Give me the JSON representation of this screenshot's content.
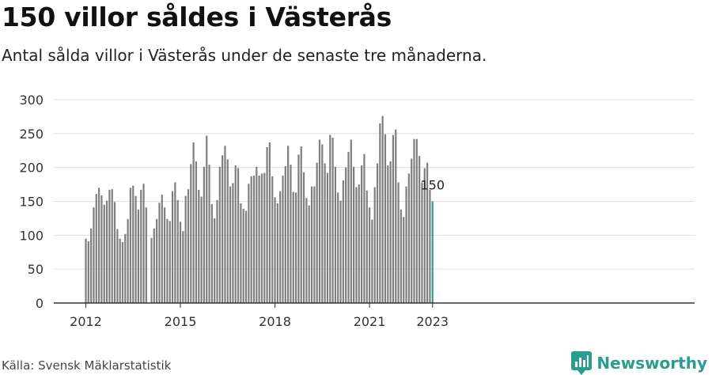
{
  "header": {
    "title": "150 villor såldes i Västerås",
    "subtitle": "Antal sålda villor i Västerås under de senaste tre månaderna."
  },
  "footer": {
    "source": "Källa: Svensk Mäklarstatistik",
    "brand": "Newsworthy",
    "brand_icon": "chart-logo-icon"
  },
  "colors": {
    "bar": "#7f7f7f",
    "highlight": "#2a9d8f",
    "grid": "#dddddd",
    "axis": "#333333",
    "brand": "#2a9d8f"
  },
  "chart_data": {
    "type": "bar",
    "title": "150 villor såldes i Västerås",
    "subtitle": "Antal sålda villor i Västerås under de senaste tre månaderna.",
    "xlabel": "",
    "ylabel": "",
    "ylim": [
      0,
      300
    ],
    "yticks": [
      0,
      50,
      100,
      150,
      200,
      250,
      300
    ],
    "xticks": [
      "2012",
      "2015",
      "2018",
      "2021",
      "2023"
    ],
    "grid": true,
    "start": "2012-01",
    "end": "2023-01",
    "highlight_label": "150",
    "values": [
      95,
      91,
      110,
      141,
      161,
      170,
      159,
      145,
      151,
      167,
      168,
      149,
      109,
      95,
      90,
      102,
      124,
      170,
      173,
      158,
      138,
      167,
      176,
      141,
      null,
      96,
      110,
      124,
      148,
      160,
      141,
      124,
      121,
      165,
      178,
      152,
      120,
      106,
      158,
      168,
      205,
      237,
      209,
      167,
      157,
      201,
      247,
      204,
      146,
      125,
      152,
      201,
      218,
      232,
      212,
      172,
      177,
      203,
      199,
      147,
      139,
      136,
      176,
      187,
      188,
      201,
      188,
      191,
      192,
      230,
      237,
      187,
      156,
      147,
      165,
      188,
      202,
      232,
      204,
      164,
      163,
      219,
      231,
      193,
      155,
      144,
      172,
      172,
      207,
      241,
      234,
      206,
      192,
      248,
      244,
      201,
      163,
      151,
      181,
      200,
      223,
      241,
      201,
      171,
      175,
      203,
      220,
      166,
      141,
      123,
      171,
      206,
      265,
      276,
      249,
      203,
      209,
      248,
      256,
      178,
      138,
      127,
      172,
      191,
      213,
      242,
      242,
      217,
      178,
      199,
      207,
      167,
      150
    ]
  }
}
